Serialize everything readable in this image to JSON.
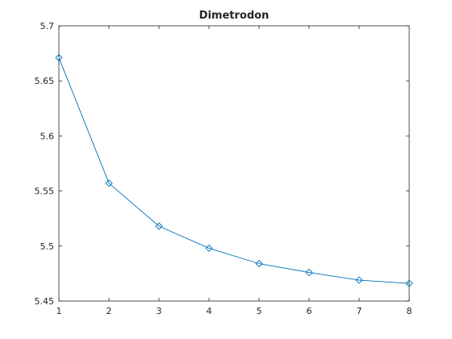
{
  "chart_data": {
    "type": "line",
    "title": "Dimetrodon",
    "xlabel": "",
    "ylabel": "",
    "xlim": [
      1,
      8
    ],
    "ylim": [
      5.45,
      5.7
    ],
    "xticks": [
      1,
      2,
      3,
      4,
      5,
      6,
      7,
      8
    ],
    "xtick_labels": [
      "1",
      "2",
      "3",
      "4",
      "5",
      "6",
      "7",
      "8"
    ],
    "yticks": [
      5.45,
      5.5,
      5.55,
      5.6,
      5.65,
      5.7
    ],
    "ytick_labels": [
      "5.45",
      "5.5",
      "5.55",
      "5.6",
      "5.65",
      "5.7"
    ],
    "grid": false,
    "series": [
      {
        "name": "",
        "color": "#0072bd",
        "marker": "diamond",
        "x": [
          1,
          2,
          3,
          4,
          5,
          6,
          7,
          8
        ],
        "y": [
          5.671,
          5.557,
          5.518,
          5.498,
          5.484,
          5.476,
          5.469,
          5.466
        ]
      }
    ]
  }
}
